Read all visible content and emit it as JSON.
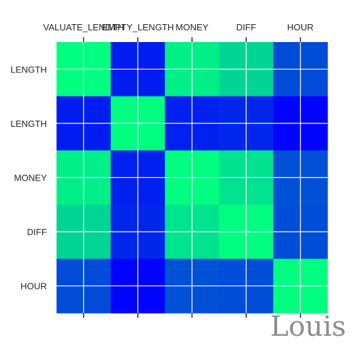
{
  "chart_data": {
    "type": "heatmap",
    "title": "",
    "x_labels": [
      "VALUATE_LENGTH",
      "EMPTY_LENGTH",
      "MONEY",
      "DIFF",
      "HOUR"
    ],
    "y_labels": [
      "VALUATE_LENGTH",
      "EMPTY_LENGTH",
      "MONEY",
      "DIFF",
      "HOUR"
    ],
    "x_tick_labels_display": [
      "VALUATE_LENGTH",
      "EMPTY_LENGTH",
      "MONEY",
      "DIFF",
      "HOUR"
    ],
    "y_tick_labels_display": [
      "LENGTH",
      "LENGTH",
      "MONEY",
      "DIFF",
      "HOUR"
    ],
    "x_axis_position": "top",
    "colormap": "winter",
    "color_range": [
      -0.35,
      1.0
    ],
    "grid": true,
    "values": [
      [
        1.0,
        -0.2,
        0.92,
        0.78,
        0.05
      ],
      [
        -0.2,
        1.0,
        -0.18,
        -0.15,
        -0.33
      ],
      [
        0.92,
        -0.18,
        1.0,
        0.85,
        0.08
      ],
      [
        0.78,
        -0.15,
        0.85,
        1.0,
        0.06
      ],
      [
        0.05,
        -0.33,
        0.08,
        0.06,
        1.0
      ]
    ]
  },
  "watermark": "Louis"
}
